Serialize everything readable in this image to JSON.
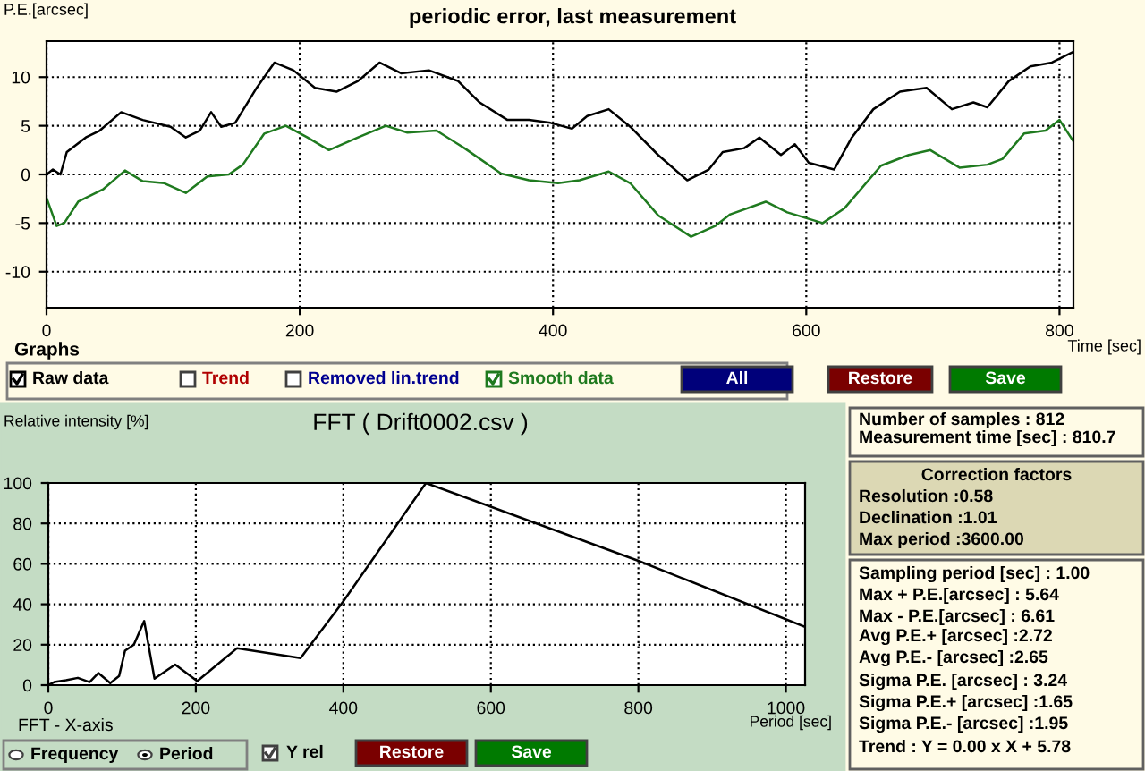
{
  "chart_data": [
    {
      "type": "line",
      "title": "periodic error, last measurement",
      "xlabel": "Time [sec]",
      "ylabel": "P.E.[arcsec]",
      "xlim": [
        0,
        811
      ],
      "ylim": [
        -13.7,
        13.7
      ],
      "xticks": [
        0,
        200,
        400,
        600,
        800
      ],
      "yticks": [
        -10,
        -5,
        0,
        5,
        10
      ],
      "grid": true,
      "legend": "bottom",
      "series": [
        {
          "name": "Raw data",
          "color": "#000000",
          "x": [
            0,
            5,
            11,
            16,
            31,
            42,
            59,
            76,
            98,
            110,
            121,
            130,
            138,
            149,
            166,
            180,
            195,
            212,
            229,
            246,
            263,
            280,
            302,
            325,
            342,
            364,
            381,
            398,
            415,
            427,
            444,
            461,
            483,
            506,
            523,
            534,
            551,
            563,
            580,
            591,
            602,
            622,
            636,
            653,
            674,
            695,
            715,
            732,
            743,
            760,
            777,
            794,
            811
          ],
          "values": [
            0,
            0.5,
            0,
            2.3,
            3.8,
            4.5,
            6.4,
            5.6,
            4.9,
            3.8,
            4.5,
            6.4,
            4.9,
            5.3,
            8.9,
            11.5,
            10.7,
            8.9,
            8.5,
            9.6,
            11.5,
            10.4,
            10.7,
            9.6,
            7.4,
            5.6,
            5.6,
            5.3,
            4.7,
            6.0,
            6.7,
            4.9,
            2.0,
            -0.6,
            0.5,
            2.3,
            2.7,
            3.8,
            2.0,
            3.1,
            1.2,
            0.5,
            3.8,
            6.7,
            8.5,
            8.9,
            6.7,
            7.4,
            6.9,
            9.6,
            11.1,
            11.5,
            12.6
          ]
        },
        {
          "name": "Smooth data",
          "color": "#1f7a1f",
          "x": [
            0,
            8,
            14,
            25,
            45,
            62,
            76,
            93,
            110,
            127,
            144,
            155,
            172,
            189,
            206,
            223,
            246,
            268,
            285,
            308,
            330,
            359,
            381,
            404,
            421,
            444,
            461,
            483,
            509,
            528,
            540,
            568,
            585,
            613,
            630,
            659,
            681,
            698,
            721,
            743,
            755,
            772,
            789,
            800,
            811
          ],
          "values": [
            -2.4,
            -5.3,
            -5.0,
            -2.8,
            -1.5,
            0.4,
            -0.7,
            -0.9,
            -1.9,
            -0.2,
            0,
            1.0,
            4.2,
            5.0,
            3.8,
            2.5,
            3.8,
            5.0,
            4.3,
            4.5,
            2.7,
            0.1,
            -0.6,
            -0.9,
            -0.6,
            0.3,
            -0.9,
            -4.2,
            -6.4,
            -5.3,
            -4.1,
            -2.8,
            -3.9,
            -5.0,
            -3.5,
            0.9,
            2.0,
            2.5,
            0.7,
            1.0,
            1.6,
            4.2,
            4.5,
            5.6,
            3.4
          ]
        }
      ],
      "annotations": [
        "Graphs",
        "Trend",
        "Removed lin.trend",
        "All",
        "Restore",
        "Save"
      ]
    },
    {
      "type": "line",
      "title": "FFT ( Drift0002.csv )",
      "xlabel": "Period [sec]",
      "ylabel": "Relative intensity [%]",
      "xlim": [
        0,
        1026
      ],
      "ylim": [
        0,
        100
      ],
      "xticks": [
        0,
        200,
        400,
        600,
        800,
        1000
      ],
      "yticks": [
        0,
        20,
        40,
        60,
        80,
        100
      ],
      "grid": true,
      "series": [
        {
          "color": "#000000",
          "x": [
            0,
            8,
            24,
            40,
            56,
            68,
            84,
            96,
            104,
            116,
            130,
            144,
            172,
            202,
            256,
            342,
            400,
            512,
            800,
            1026
          ],
          "values": [
            0,
            1.5,
            2.4,
            3.6,
            1.5,
            6,
            1,
            4.5,
            17,
            20,
            31.7,
            3.2,
            10.2,
            2,
            18.3,
            13.4,
            41.5,
            100,
            61.5,
            28.8
          ]
        }
      ],
      "annotations": [
        "FFT - X-axis",
        "Frequency",
        "Period",
        "Y rel",
        "Restore",
        "Save"
      ]
    },
    {
      "type": "other",
      "annotations": [
        "Number of samples : 812",
        "Measurement time [sec] : 810.7",
        "Correction factors",
        "Resolution :0.58",
        "Declination :1.01",
        "Max period :3600.00",
        "Sampling period [sec] : 1.00",
        "Max + P.E.[arcsec] : 5.64",
        "Max - P.E.[arcsec] : 6.61",
        "Avg P.E.+ [arcsec] :2.72",
        "Avg P.E.- [arcsec] :2.65",
        "Sigma P.E. [arcsec] : 3.24",
        "Sigma P.E.+ [arcsec] :1.65",
        "Sigma P.E.- [arcsec] :1.95",
        "Trend : Y = 0.00 x X + 5.78"
      ]
    }
  ]
}
